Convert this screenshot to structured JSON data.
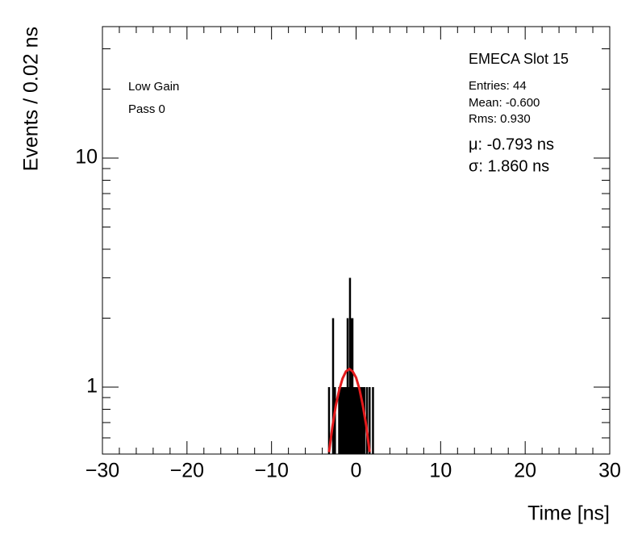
{
  "chart_data": {
    "type": "histogram",
    "title": "EMECA Slot 15",
    "annotations": [
      "Low Gain",
      "Pass 0"
    ],
    "stats": [
      "Entries: 44",
      "Mean: -0.600",
      "Rms: 0.930"
    ],
    "fit_text": [
      "μ: -0.793 ns",
      "σ: 1.860 ns"
    ],
    "x_label": "Time [ns]",
    "y_label": "Events / 0.02 ns",
    "log_y": true,
    "xlim": [
      -30,
      30
    ],
    "ylim": [
      0.51,
      37.5
    ],
    "xticks": [
      {
        "value": -30,
        "label": "−30"
      },
      {
        "value": -20,
        "label": "−20"
      },
      {
        "value": -10,
        "label": "−10"
      },
      0,
      10,
      20,
      30
    ],
    "xminorticks": [
      -28,
      -26,
      -24,
      -22,
      -18,
      -16,
      -14,
      -12,
      -8,
      -6,
      -4,
      -2,
      2,
      4,
      6,
      8,
      12,
      14,
      16,
      18,
      22,
      24,
      26,
      28
    ],
    "yticks": [
      1,
      10
    ],
    "yminorticks": [
      0.6,
      0.7,
      0.8,
      0.9,
      2,
      3,
      4,
      5,
      6,
      7,
      8,
      9,
      20,
      30
    ],
    "series": [
      {
        "name": "Events",
        "color": "#000000",
        "x": [
          -3.2,
          -2.72,
          -2.5,
          -2.0,
          -1.8,
          -1.6,
          -1.5,
          -1.4,
          -1.3,
          -1.2,
          -1.1,
          -1.0,
          -0.9,
          -0.8,
          -0.72,
          -0.6,
          -0.5,
          -0.43,
          -0.35,
          -0.3,
          -0.25,
          -0.2,
          -0.1,
          0.0,
          0.05,
          0.1,
          0.15,
          0.2,
          0.3,
          0.4,
          0.5,
          0.6,
          0.7,
          0.85,
          1.0,
          1.3,
          1.6,
          2.0
        ],
        "values": [
          1,
          2,
          1,
          1,
          1,
          1,
          1,
          1,
          1,
          1,
          1,
          2,
          1,
          1,
          3,
          1,
          2,
          2,
          1,
          1,
          1,
          1,
          1,
          1,
          1,
          1,
          1,
          1,
          1,
          1,
          1,
          1,
          1,
          1,
          1,
          1,
          1,
          1
        ]
      },
      {
        "name": "Fit",
        "color": "#e41a1c",
        "x": [
          -3.2,
          -2.8,
          -2.4,
          -2.0,
          -1.6,
          -1.2,
          -0.8,
          -0.4,
          0.0,
          0.4,
          0.8,
          1.2,
          1.6
        ],
        "values": [
          0.52,
          0.67,
          0.83,
          0.97,
          1.09,
          1.17,
          1.2,
          1.17,
          1.1,
          0.98,
          0.83,
          0.68,
          0.52
        ]
      }
    ]
  }
}
